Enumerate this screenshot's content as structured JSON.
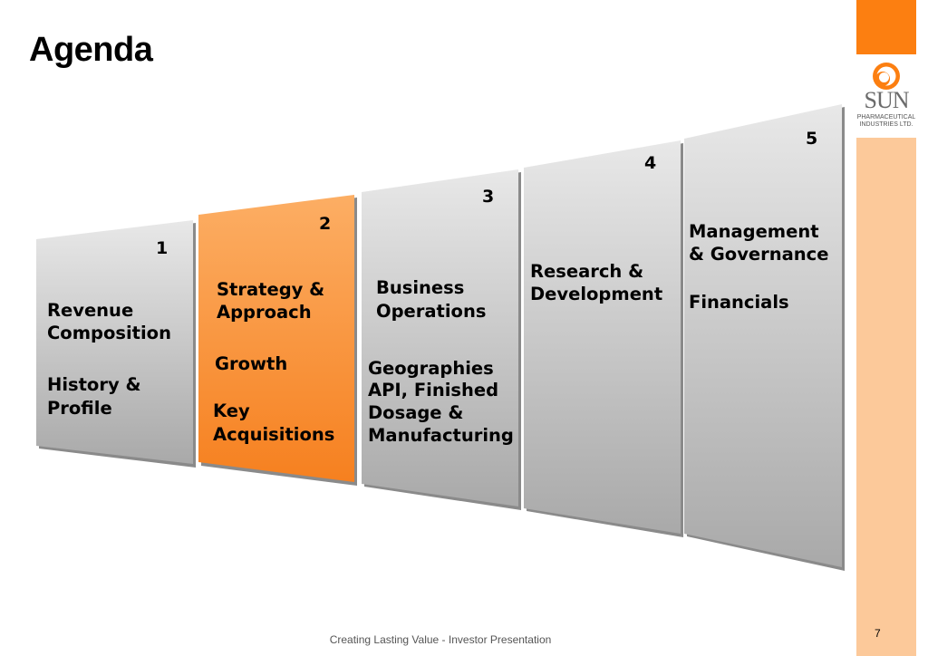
{
  "slide": {
    "title": "Agenda",
    "footer": "Creating Lasting Value - Investor Presentation",
    "page_number": "7"
  },
  "logo": {
    "word": "SUN",
    "line1": "PHARMACEUTICAL",
    "line2": "INDUSTRIES LTD."
  },
  "colors": {
    "accent_orange": "#fc7f11",
    "sidebar_peach": "#fcc99a",
    "panel_gray": "#c8c8c8",
    "highlight_orange": "#f9953a"
  },
  "panels": [
    {
      "number": "1",
      "highlighted": false,
      "items": [
        "Revenue",
        "Composition",
        "History &",
        "Profile"
      ]
    },
    {
      "number": "2",
      "highlighted": true,
      "items": [
        "Strategy &",
        "Approach",
        "Growth",
        "Key",
        "Acquisitions"
      ]
    },
    {
      "number": "3",
      "highlighted": false,
      "items": [
        "Business",
        "Operations",
        "Geographies",
        "API, Finished",
        "Dosage &",
        "Manufacturing"
      ]
    },
    {
      "number": "4",
      "highlighted": false,
      "items": [
        "Research &",
        "Development"
      ]
    },
    {
      "number": "5",
      "highlighted": false,
      "items": [
        "Management",
        "& Governance",
        "Financials"
      ]
    }
  ]
}
